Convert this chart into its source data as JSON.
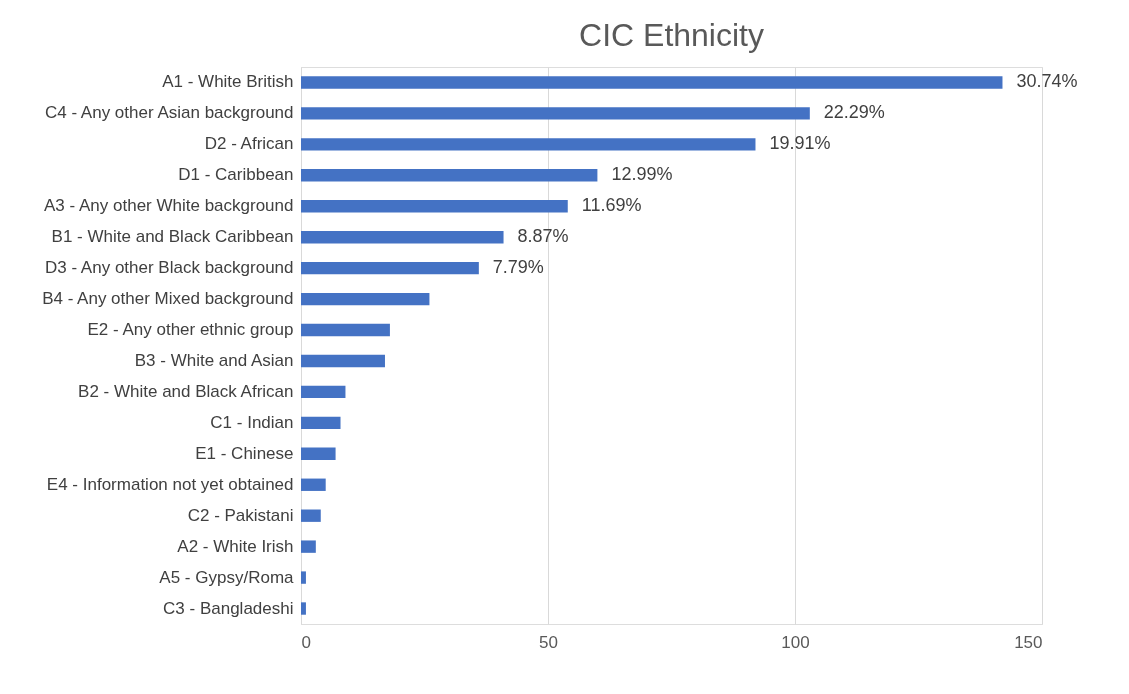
{
  "chart_data": {
    "type": "bar",
    "orientation": "horizontal",
    "title": "CIC Ethnicity",
    "categories": [
      "A1 - White British",
      "C4 - Any other Asian background",
      "D2 - African",
      "D1 - Caribbean",
      "A3 - Any other White background",
      "B1 - White and Black Caribbean",
      "D3 - Any other Black background",
      "B4 - Any other Mixed background",
      "E2 - Any other ethnic group",
      "B3 - White and Asian",
      "B2 - White and Black African",
      "C1 - Indian",
      "E1 - Chinese",
      "E4 - Information not yet obtained",
      "C2 - Pakistani",
      "A2 - White Irish",
      "A5 - Gypsy/Roma",
      "C3 - Bangladeshi"
    ],
    "values": [
      142,
      103,
      92,
      60,
      54,
      41,
      36,
      26,
      18,
      17,
      9,
      8,
      7,
      5,
      4,
      3,
      1,
      1
    ],
    "annotations": [
      {
        "text": "30.74%",
        "x": 142,
        "y": "A1 - White British"
      },
      {
        "text": "22.29%",
        "x": 103,
        "y": "C4 - Any other Asian background"
      },
      {
        "text": "19.91%",
        "x": 92,
        "y": "D2 - African"
      },
      {
        "text": "12.99%",
        "x": 60,
        "y": "D1 - Caribbean"
      },
      {
        "text": "11.69%",
        "x": 54,
        "y": "A3 - Any other White background"
      },
      {
        "text": "8.87%",
        "x": 41,
        "y": "B1 - White and Black Caribbean"
      },
      {
        "text": "7.79%",
        "x": 36,
        "y": "D3 - Any other Black background"
      }
    ],
    "color": "#4472c4",
    "xlim": [
      0,
      150
    ],
    "xticks": [
      0,
      50,
      100,
      150
    ],
    "grid": "x"
  }
}
